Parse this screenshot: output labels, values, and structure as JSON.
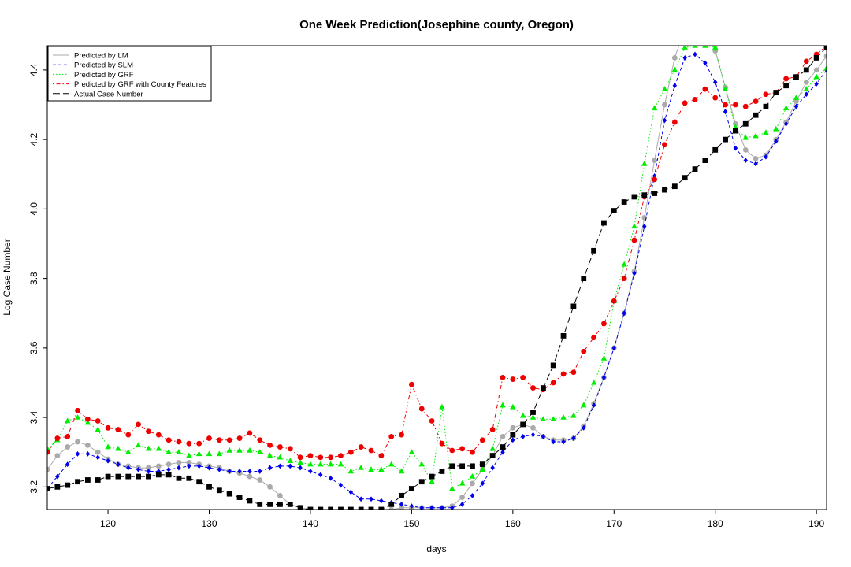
{
  "chart_data": {
    "type": "line",
    "title": "One Week Prediction(Josephine county, Oregon)",
    "xlabel": "days",
    "ylabel": "Log Case Number",
    "xlim": [
      114,
      191
    ],
    "ylim": [
      3.135,
      4.47
    ],
    "xticks": [
      120,
      130,
      140,
      150,
      160,
      170,
      180,
      190
    ],
    "yticks": [
      3.2,
      3.4,
      3.6,
      3.8,
      4.0,
      4.2,
      4.4
    ],
    "grid": false,
    "legend_position": "top-left",
    "x": [
      114,
      115,
      116,
      117,
      118,
      119,
      120,
      121,
      122,
      123,
      124,
      125,
      126,
      127,
      128,
      129,
      130,
      131,
      132,
      133,
      134,
      135,
      136,
      137,
      138,
      139,
      140,
      141,
      142,
      143,
      144,
      145,
      146,
      147,
      148,
      149,
      150,
      151,
      152,
      153,
      154,
      155,
      156,
      157,
      158,
      159,
      160,
      161,
      162,
      163,
      164,
      165,
      166,
      167,
      168,
      169,
      170,
      171,
      172,
      173,
      174,
      175,
      176,
      177,
      178,
      179,
      180,
      181,
      182,
      183,
      184,
      185,
      186,
      187,
      188,
      189,
      190,
      191
    ],
    "series": [
      {
        "name": "Predicted by LM",
        "color": "#aaaaaa",
        "line": "solid",
        "marker": "circle",
        "values": [
          3.25,
          3.29,
          3.315,
          3.33,
          3.32,
          3.3,
          3.28,
          3.265,
          3.26,
          3.255,
          3.255,
          3.26,
          3.265,
          3.27,
          3.27,
          3.265,
          3.26,
          3.255,
          3.245,
          3.24,
          3.23,
          3.22,
          3.2,
          3.175,
          3.15,
          3.14,
          3.135,
          3.135,
          3.135,
          3.135,
          3.135,
          3.135,
          3.135,
          3.135,
          3.135,
          3.14,
          3.14,
          3.14,
          3.14,
          3.14,
          3.145,
          3.17,
          3.21,
          3.25,
          3.29,
          3.345,
          3.37,
          3.38,
          3.37,
          3.345,
          3.335,
          3.335,
          3.34,
          3.375,
          3.44,
          3.515,
          3.6,
          3.7,
          3.82,
          3.975,
          4.14,
          4.3,
          4.435,
          4.52,
          4.56,
          4.53,
          4.455,
          4.35,
          4.245,
          4.17,
          4.145,
          4.155,
          4.2,
          4.25,
          4.31,
          4.365,
          4.4,
          4.44
        ]
      },
      {
        "name": "Predicted by SLM",
        "color": "#0000ee",
        "line": "dashed",
        "marker": "diamond",
        "values": [
          3.195,
          3.23,
          3.265,
          3.295,
          3.295,
          3.285,
          3.275,
          3.265,
          3.255,
          3.25,
          3.245,
          3.245,
          3.25,
          3.255,
          3.26,
          3.26,
          3.255,
          3.25,
          3.245,
          3.245,
          3.245,
          3.245,
          3.255,
          3.26,
          3.26,
          3.255,
          3.245,
          3.235,
          3.225,
          3.205,
          3.185,
          3.165,
          3.165,
          3.16,
          3.155,
          3.15,
          3.145,
          3.14,
          3.14,
          3.14,
          3.14,
          3.15,
          3.175,
          3.21,
          3.255,
          3.3,
          3.335,
          3.345,
          3.35,
          3.345,
          3.33,
          3.33,
          3.34,
          3.37,
          3.435,
          3.515,
          3.6,
          3.7,
          3.815,
          3.95,
          4.095,
          4.255,
          4.355,
          4.435,
          4.445,
          4.42,
          4.365,
          4.28,
          4.175,
          4.14,
          4.13,
          4.15,
          4.195,
          4.245,
          4.295,
          4.33,
          4.36,
          4.4
        ]
      },
      {
        "name": "Predicted by GRF",
        "color": "#00ee00",
        "line": "dotted",
        "marker": "triangle",
        "values": [
          3.31,
          3.335,
          3.39,
          3.4,
          3.385,
          3.365,
          3.315,
          3.31,
          3.3,
          3.32,
          3.31,
          3.31,
          3.3,
          3.3,
          3.29,
          3.295,
          3.295,
          3.295,
          3.305,
          3.305,
          3.305,
          3.3,
          3.29,
          3.285,
          3.275,
          3.27,
          3.265,
          3.265,
          3.265,
          3.265,
          3.245,
          3.255,
          3.25,
          3.25,
          3.265,
          3.245,
          3.3,
          3.265,
          3.215,
          3.43,
          3.195,
          3.21,
          3.23,
          3.25,
          3.31,
          3.435,
          3.43,
          3.405,
          3.4,
          3.395,
          3.395,
          3.4,
          3.405,
          3.435,
          3.5,
          3.57,
          3.735,
          3.84,
          3.95,
          4.13,
          4.29,
          4.345,
          4.4,
          4.465,
          4.47,
          4.47,
          4.465,
          4.345,
          4.235,
          4.205,
          4.21,
          4.22,
          4.23,
          4.29,
          4.32,
          4.345,
          4.38,
          4.405
        ]
      },
      {
        "name": "Predicted by GRF with County Features",
        "color": "#ee0000",
        "line": "dotdash",
        "marker": "circle",
        "values": [
          3.3,
          3.34,
          3.345,
          3.42,
          3.395,
          3.39,
          3.37,
          3.365,
          3.35,
          3.38,
          3.36,
          3.35,
          3.335,
          3.33,
          3.325,
          3.325,
          3.34,
          3.335,
          3.335,
          3.34,
          3.355,
          3.335,
          3.32,
          3.315,
          3.31,
          3.285,
          3.29,
          3.285,
          3.285,
          3.29,
          3.3,
          3.315,
          3.305,
          3.29,
          3.345,
          3.35,
          3.495,
          3.425,
          3.39,
          3.325,
          3.305,
          3.31,
          3.3,
          3.335,
          3.365,
          3.515,
          3.51,
          3.515,
          3.485,
          3.48,
          3.5,
          3.525,
          3.53,
          3.59,
          3.63,
          3.67,
          3.735,
          3.8,
          3.91,
          4.035,
          4.085,
          4.185,
          4.25,
          4.305,
          4.315,
          4.345,
          4.32,
          4.3,
          4.3,
          4.295,
          4.31,
          4.33,
          4.335,
          4.375,
          4.38,
          4.425,
          4.445,
          4.47
        ]
      },
      {
        "name": "Actual Case Number",
        "color": "#000000",
        "line": "longdash",
        "marker": "square",
        "values": [
          3.195,
          3.2,
          3.205,
          3.215,
          3.22,
          3.22,
          3.23,
          3.23,
          3.23,
          3.23,
          3.23,
          3.235,
          3.235,
          3.225,
          3.225,
          3.215,
          3.2,
          3.19,
          3.18,
          3.17,
          3.16,
          3.15,
          3.15,
          3.15,
          3.15,
          3.14,
          3.135,
          3.135,
          3.135,
          3.135,
          3.135,
          3.135,
          3.135,
          3.135,
          3.15,
          3.175,
          3.195,
          3.215,
          3.23,
          3.245,
          3.26,
          3.26,
          3.26,
          3.265,
          3.29,
          3.315,
          3.35,
          3.38,
          3.415,
          3.485,
          3.55,
          3.635,
          3.72,
          3.8,
          3.88,
          3.96,
          3.995,
          4.02,
          4.035,
          4.04,
          4.045,
          4.055,
          4.065,
          4.09,
          4.115,
          4.14,
          4.17,
          4.2,
          4.225,
          4.245,
          4.27,
          4.295,
          4.335,
          4.355,
          4.38,
          4.4,
          4.435,
          4.465
        ]
      }
    ]
  }
}
